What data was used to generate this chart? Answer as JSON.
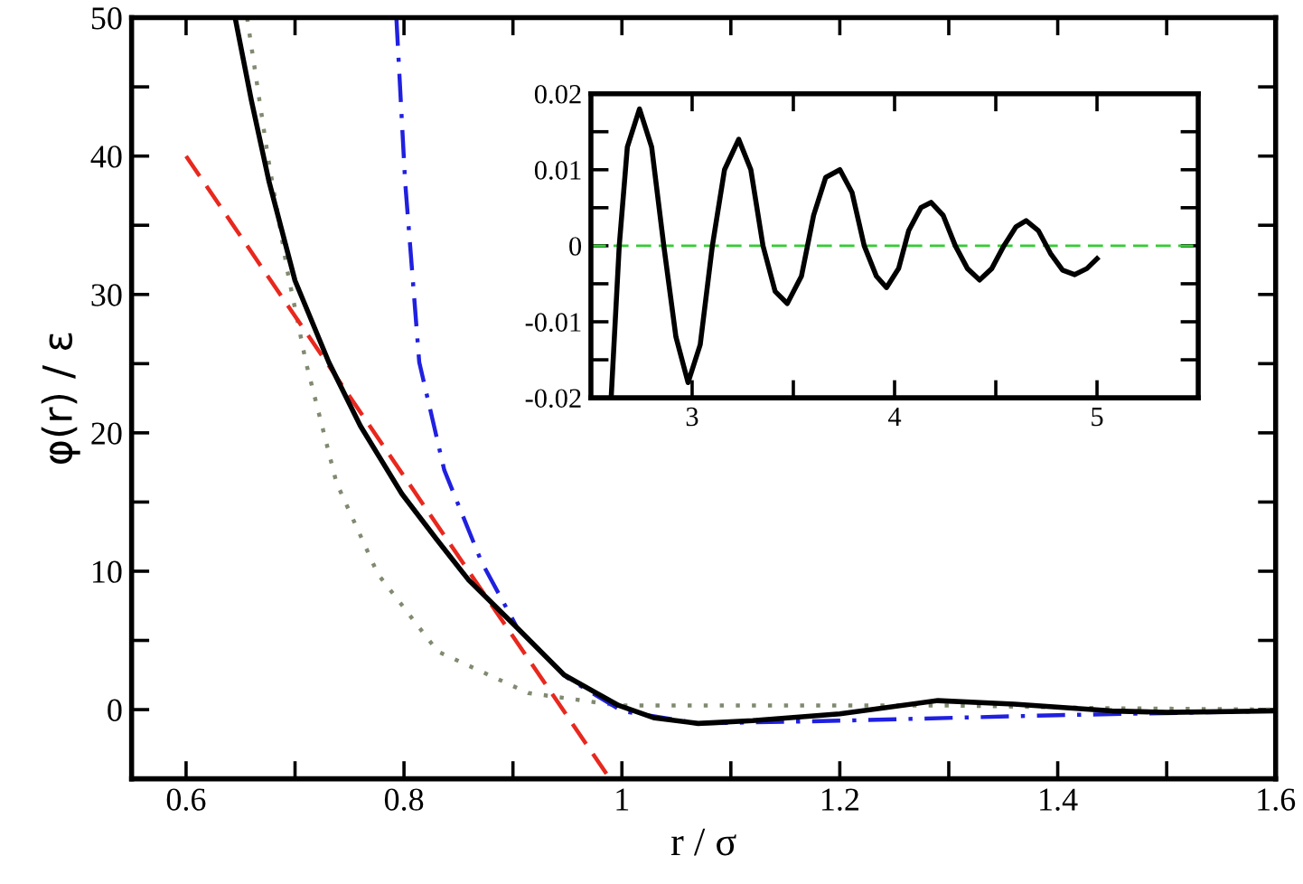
{
  "chart_data": [
    {
      "type": "line",
      "xlabel": "r / σ",
      "ylabel": "φ(r) / ε",
      "xlim": [
        0.55,
        1.6
      ],
      "ylim": [
        -5,
        50
      ],
      "xticks": [
        0.6,
        0.8,
        1,
        1.2,
        1.4,
        1.6,
        {
          "value": 0.7,
          "label": null
        },
        {
          "value": 0.9,
          "label": null
        },
        {
          "value": 1.1,
          "label": null
        },
        {
          "value": 1.3,
          "label": null
        },
        {
          "value": 1.5,
          "label": null
        }
      ],
      "yticks": [
        0,
        10,
        20,
        30,
        40,
        50,
        {
          "value": 5,
          "label": null
        },
        {
          "value": 15,
          "label": null
        },
        {
          "value": 25,
          "label": null
        },
        {
          "value": 35,
          "label": null
        },
        {
          "value": 45,
          "label": null
        }
      ],
      "grid": false,
      "legend": false,
      "marker": "none",
      "series": [
        {
          "color": "#808a70",
          "line_style": "dotted",
          "x": [
            0.656,
            0.675,
            0.693,
            0.71,
            0.738,
            0.776,
            0.831,
            0.914,
            0.997,
            1.1,
            1.3,
            1.45,
            1.6
          ],
          "values": [
            50,
            40,
            31.7,
            25.1,
            16.4,
            9.8,
            4.2,
            1.2,
            0.3,
            0.3,
            0.3,
            0.1,
            0
          ]
        },
        {
          "color": "#e8281e",
          "line_style": "dashed",
          "x": [
            0.6,
            0.989
          ],
          "values": [
            40,
            -5
          ]
        },
        {
          "color": "#2020e0",
          "line_style": "dashdot",
          "x": [
            0.793,
            0.801,
            0.814,
            0.837,
            0.871,
            0.904,
            0.95,
            1.0,
            1.07,
            1.2,
            1.4,
            1.6
          ],
          "values": [
            50,
            38.2,
            25.1,
            17.3,
            10.7,
            5.9,
            2.3,
            -0.1,
            -1.0,
            -0.8,
            -0.4,
            -0.1
          ]
        },
        {
          "color": "#000000",
          "line_style": "solid",
          "x": [
            0.645,
            0.66,
            0.676,
            0.7,
            0.731,
            0.76,
            0.798,
            0.83,
            0.859,
            0.904,
            0.947,
            0.997,
            1.03,
            1.07,
            1.12,
            1.2,
            1.29,
            1.36,
            1.45,
            1.5,
            1.6
          ],
          "values": [
            50,
            44,
            38.2,
            31,
            25.1,
            20.5,
            15.6,
            12.3,
            9.4,
            5.9,
            2.5,
            0.3,
            -0.6,
            -1.0,
            -0.8,
            -0.3,
            0.65,
            0.4,
            -0.1,
            -0.2,
            -0.1
          ]
        }
      ]
    },
    {
      "type": "line",
      "xlim": [
        2.5,
        5.5
      ],
      "ylim": [
        -0.02,
        0.02
      ],
      "xticks": [
        3,
        4,
        5,
        {
          "value": 2.5,
          "label": null
        },
        {
          "value": 3.5,
          "label": null
        },
        {
          "value": 4.5,
          "label": null
        }
      ],
      "yticks": [
        -0.02,
        -0.01,
        0,
        0.01,
        0.02,
        {
          "value": -0.015,
          "label": null
        },
        {
          "value": -0.005,
          "label": null
        },
        {
          "value": 0.005,
          "label": null
        },
        {
          "value": 0.015,
          "label": null
        }
      ],
      "grid": false,
      "legend": false,
      "marker": "none",
      "ref_lines": [
        {
          "axis": "y",
          "value": 0,
          "color": "#33cc33",
          "line_style": "dashed"
        }
      ],
      "series": [
        {
          "color": "#000000",
          "line_style": "solid",
          "x": [
            2.6,
            2.64,
            2.68,
            2.74,
            2.8,
            2.86,
            2.92,
            2.98,
            3.04,
            3.1,
            3.16,
            3.23,
            3.29,
            3.35,
            3.41,
            3.47,
            3.54,
            3.6,
            3.66,
            3.73,
            3.79,
            3.85,
            3.91,
            3.96,
            4.02,
            4.07,
            4.13,
            4.18,
            4.24,
            4.3,
            4.36,
            4.42,
            4.48,
            4.54,
            4.6,
            4.65,
            4.71,
            4.77,
            4.83,
            4.89,
            4.95,
            5.0
          ],
          "values": [
            -0.02,
            0.0,
            0.013,
            0.018,
            0.013,
            0.0,
            -0.012,
            -0.018,
            -0.013,
            0.0,
            0.01,
            0.014,
            0.01,
            0.0,
            -0.006,
            -0.0076,
            -0.004,
            0.004,
            0.009,
            0.01,
            0.007,
            0.0,
            -0.004,
            -0.0055,
            -0.003,
            0.002,
            0.005,
            0.0057,
            0.004,
            0.0,
            -0.003,
            -0.0045,
            -0.003,
            0.0,
            0.0025,
            0.0033,
            0.002,
            -0.001,
            -0.0032,
            -0.0038,
            -0.003,
            -0.0017
          ]
        }
      ]
    }
  ]
}
